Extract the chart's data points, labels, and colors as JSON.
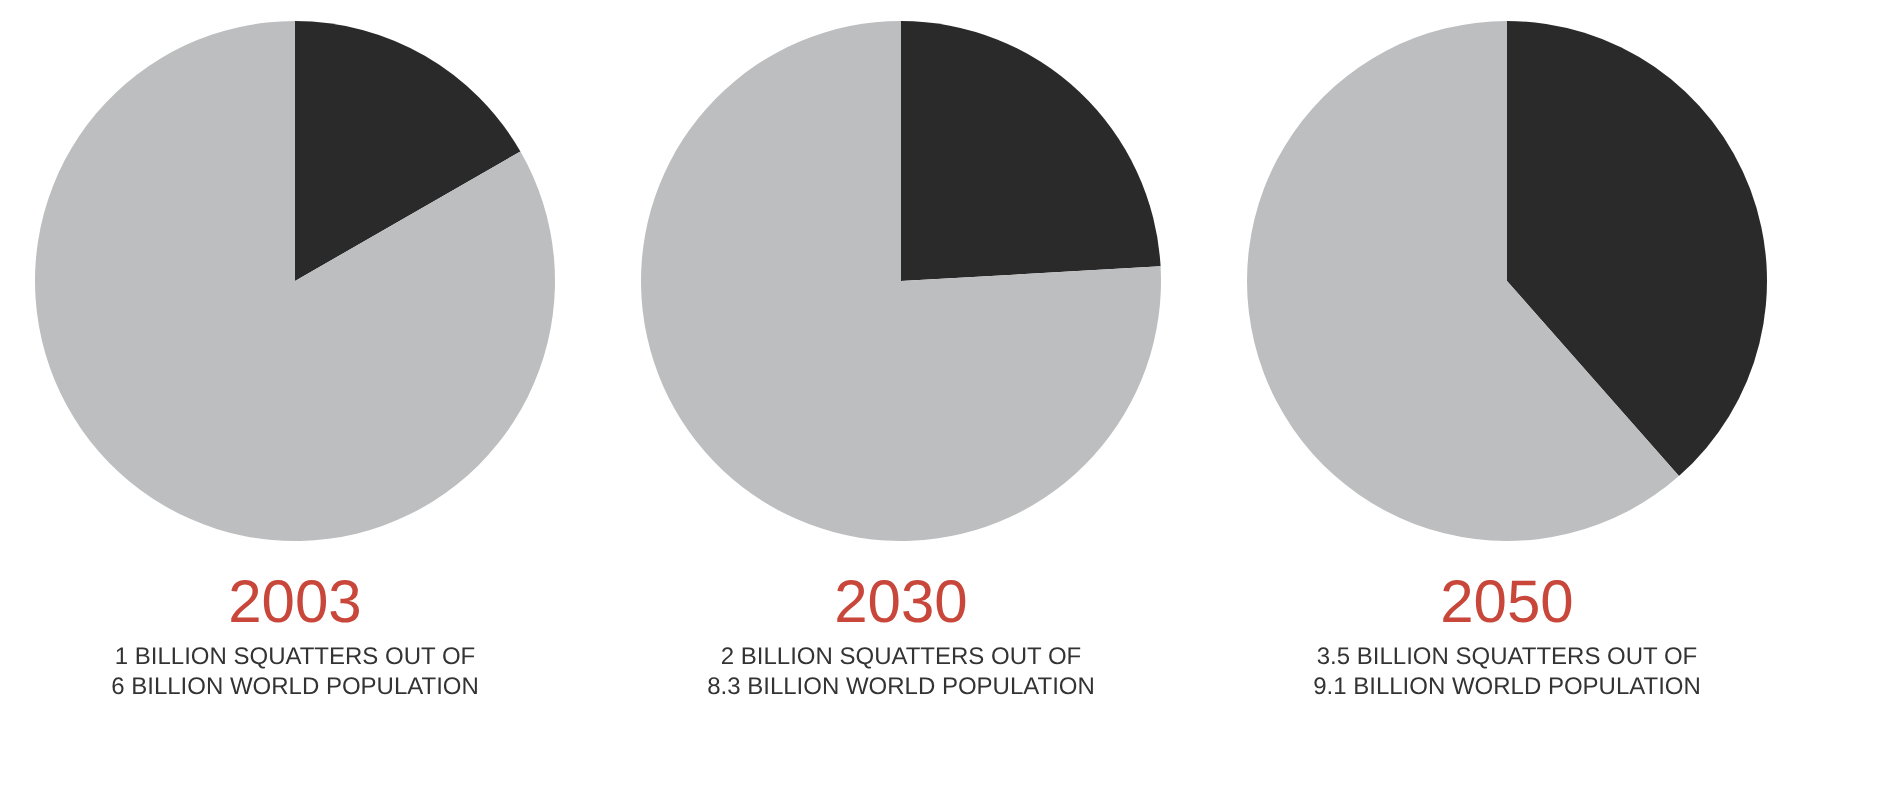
{
  "chart_data": [
    {
      "type": "pie",
      "title": "2003",
      "categories": [
        null,
        null
      ],
      "values": [
        16.7,
        83.3
      ],
      "colors": [
        "#2b2a2b",
        "#bcbec0"
      ],
      "legend": false,
      "annotations": [
        "1 BILLION SQUATTERS OUT OF",
        "6 BILLION WORLD POPULATION"
      ]
    },
    {
      "type": "pie",
      "title": "2030",
      "categories": [
        null,
        null
      ],
      "values": [
        24.1,
        75.9
      ],
      "colors": [
        "#2b2a2b",
        "#bcbec0"
      ],
      "legend": false,
      "annotations": [
        "2 BILLION SQUATTERS OUT OF",
        "8.3 BILLION WORLD POPULATION"
      ]
    },
    {
      "type": "pie",
      "title": "2050",
      "categories": [
        null,
        null
      ],
      "values": [
        38.5,
        61.5
      ],
      "colors": [
        "#2b2a2b",
        "#bcbec0"
      ],
      "legend": false,
      "annotations": [
        "3.5 BILLION SQUATTERS OUT OF",
        "9.1 BILLION WORLD POPULATION"
      ]
    }
  ]
}
